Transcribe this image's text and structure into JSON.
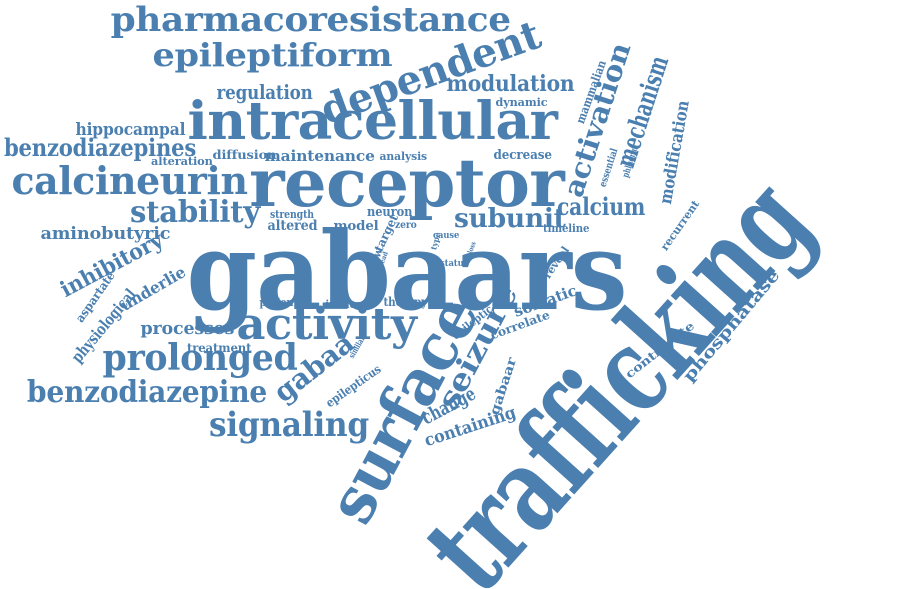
{
  "colors": {
    "word": "#4a7fb0",
    "background": "#ffffff"
  },
  "words": [
    {
      "text": "trafficking"
    },
    {
      "text": "gabaars"
    },
    {
      "text": "receptor"
    },
    {
      "text": "intracellular"
    },
    {
      "text": "surface"
    },
    {
      "text": "activity"
    },
    {
      "text": "pharmacoresistance"
    },
    {
      "text": "epileptiform"
    },
    {
      "text": "dependent"
    },
    {
      "text": "calcineurin"
    },
    {
      "text": "prolonged"
    },
    {
      "text": "benzodiazepine"
    },
    {
      "text": "signaling"
    },
    {
      "text": "benzodiazepines"
    },
    {
      "text": "stability"
    },
    {
      "text": "seizure"
    },
    {
      "text": "gabaa"
    },
    {
      "text": "activation"
    },
    {
      "text": "mechanism"
    },
    {
      "text": "subunit"
    },
    {
      "text": "calcium"
    },
    {
      "text": "modulation"
    },
    {
      "text": "regulation"
    },
    {
      "text": "hippocampal"
    },
    {
      "text": "inhibitory"
    },
    {
      "text": "processes"
    },
    {
      "text": "aminobutyric"
    },
    {
      "text": "modification"
    },
    {
      "text": "phosphatase"
    },
    {
      "text": "containing"
    },
    {
      "text": "change"
    },
    {
      "text": "maintenance"
    },
    {
      "text": "physiological"
    },
    {
      "text": "underlie"
    },
    {
      "text": "somatic"
    },
    {
      "text": "mammalian"
    },
    {
      "text": "decrease"
    },
    {
      "text": "neuron"
    },
    {
      "text": "altered"
    },
    {
      "text": "model"
    },
    {
      "text": "strength"
    },
    {
      "text": "alteration"
    },
    {
      "text": "diffusion"
    },
    {
      "text": "analysis"
    },
    {
      "text": "dynamic"
    },
    {
      "text": "essential"
    },
    {
      "text": "phluorin"
    },
    {
      "text": "recurrent"
    },
    {
      "text": "timeline"
    },
    {
      "text": "target"
    },
    {
      "text": "zero"
    },
    {
      "text": "type"
    },
    {
      "text": "cause"
    },
    {
      "text": "status"
    },
    {
      "text": "show"
    },
    {
      "text": "reveal"
    },
    {
      "text": "patient"
    },
    {
      "text": "induce"
    },
    {
      "text": "therapy"
    },
    {
      "text": "treatment"
    },
    {
      "text": "aspartate"
    },
    {
      "text": "epilepticus"
    },
    {
      "text": "gabaar"
    },
    {
      "text": "epileptic"
    },
    {
      "text": "correlate"
    },
    {
      "text": "contribute"
    },
    {
      "text": "similar"
    },
    {
      "text": "lead"
    },
    {
      "text": "loss"
    }
  ]
}
